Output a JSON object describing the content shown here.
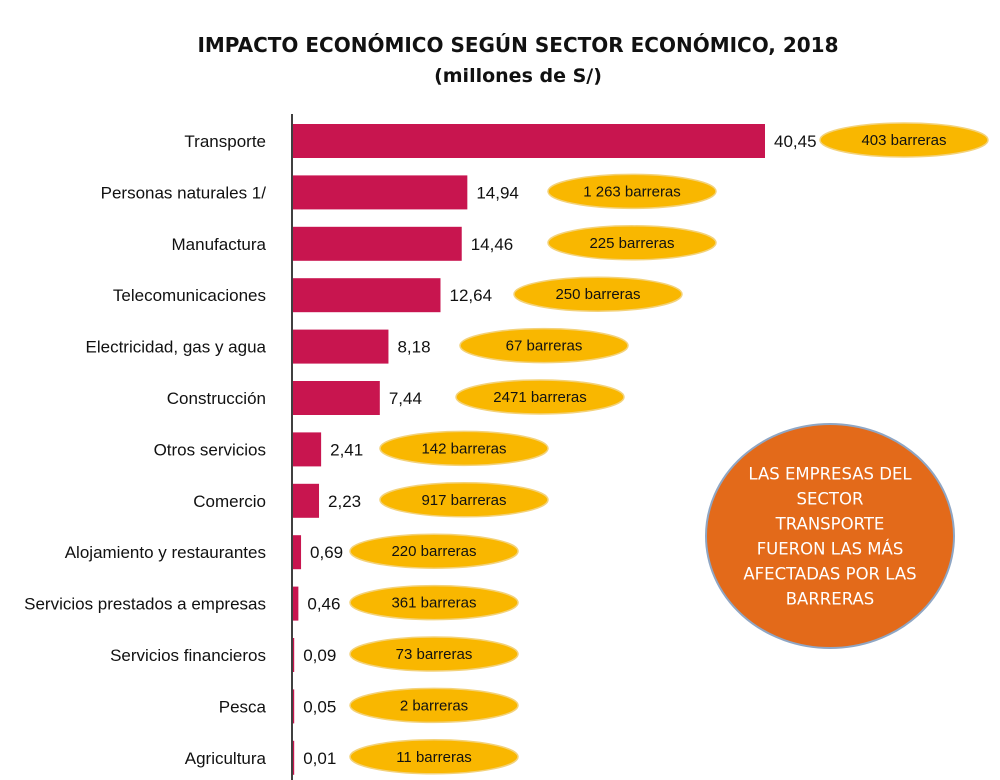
{
  "colors": {
    "bar": "#C8154F",
    "pill": "#F9B700",
    "pill_stroke": "#F3D27A",
    "callout": "#E36A1A",
    "callout_stroke": "#8FA6C4",
    "axis": "#000000"
  },
  "chart_data": {
    "type": "bar",
    "orientation": "horizontal",
    "title": "IMPACTO ECONÓMICO SEGÚN SECTOR ECONÓMICO, 2018",
    "subtitle": "(millones de S/)",
    "categories": [
      "Transporte",
      "Personas naturales 1/",
      "Manufactura",
      "Telecomunicaciones",
      "Electricidad, gas y agua",
      "Construcción",
      "Otros servicios",
      "Comercio",
      "Alojamiento y restaurantes",
      "Servicios prestados a empresas",
      "Servicios financieros",
      "Pesca",
      "Agricultura"
    ],
    "values": [
      40.45,
      14.94,
      14.46,
      12.64,
      8.18,
      7.44,
      2.41,
      2.23,
      0.69,
      0.46,
      0.09,
      0.05,
      0.01
    ],
    "value_labels": [
      "40,45",
      "14,94",
      "14,46",
      "12,64",
      "8,18",
      "7,44",
      "2,41",
      "2,23",
      "0,69",
      "0,46",
      "0,09",
      "0,05",
      "0,01"
    ],
    "annotations": [
      "403 barreras",
      "1 263 barreras",
      "225 barreras",
      "250 barreras",
      "67 barreras",
      "2471 barreras",
      "142 barreras",
      "917 barreras",
      "220 barreras",
      "361 barreras",
      "73 barreras",
      "2 barreras",
      "11 barreras"
    ],
    "xlim": [
      0,
      40.45
    ],
    "grid": false,
    "callout": [
      "LAS EMPRESAS DEL",
      "SECTOR",
      "TRANSPORTE",
      "FUERON LAS MÁS",
      "AFECTADAS POR LAS",
      "BARRERAS"
    ]
  }
}
